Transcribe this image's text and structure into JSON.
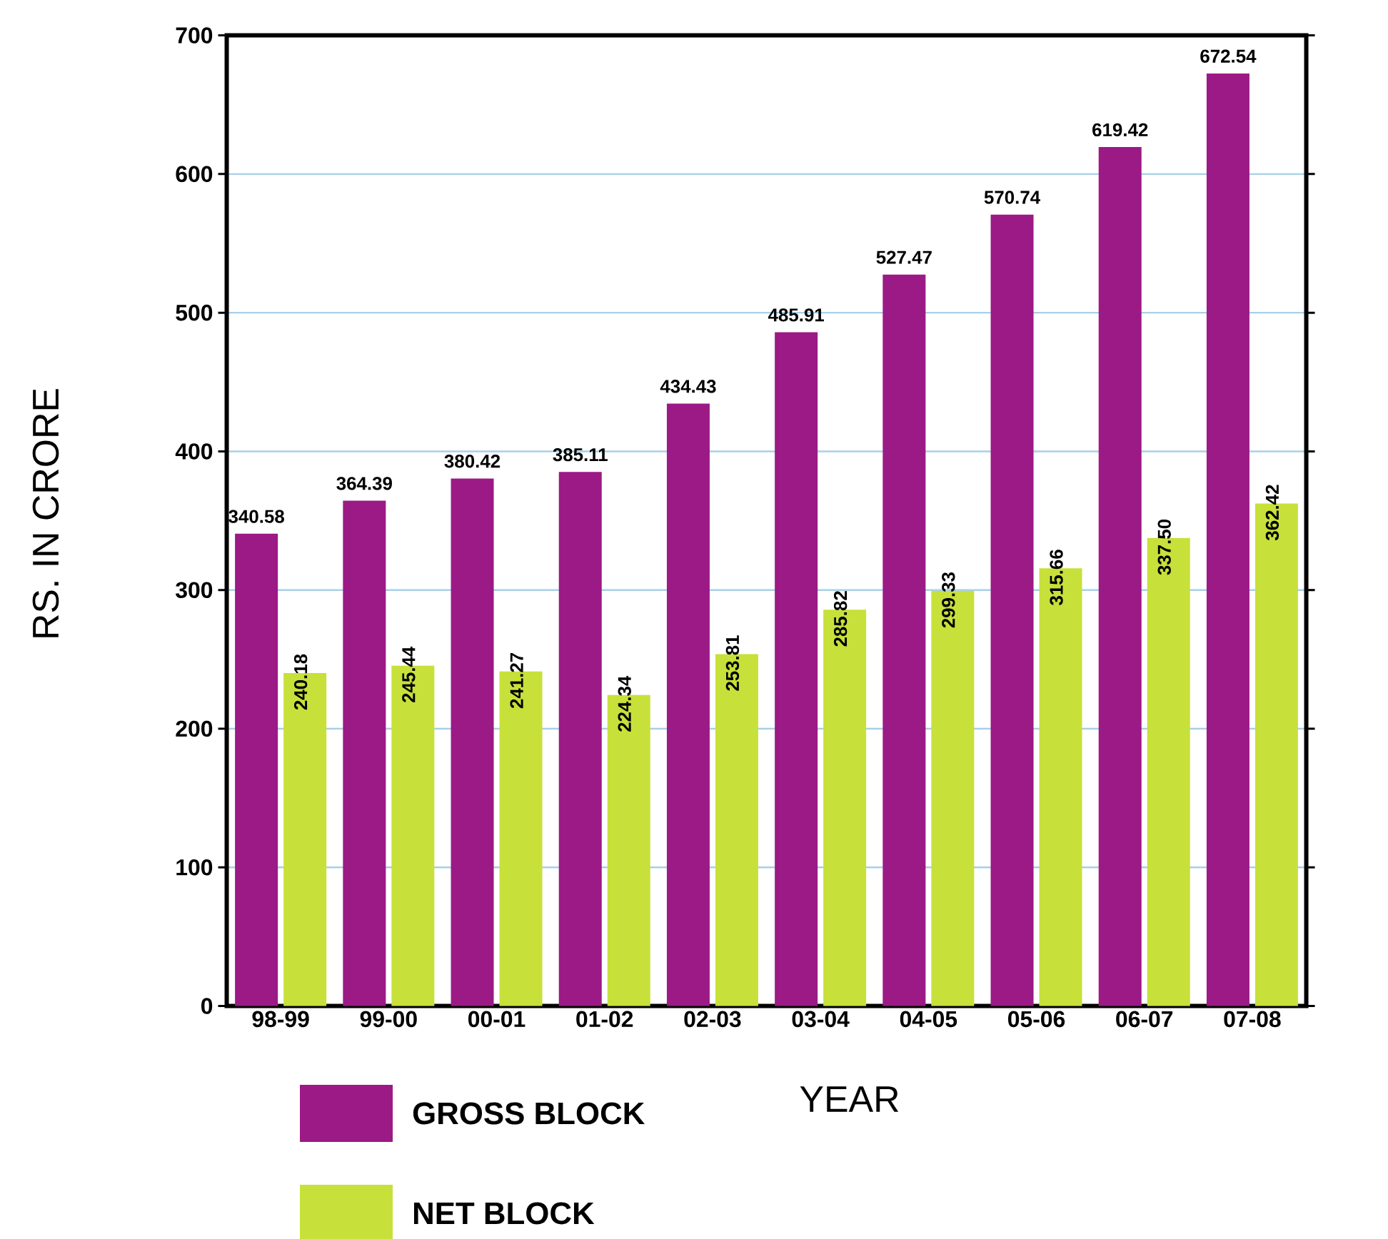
{
  "chart_data": {
    "type": "bar",
    "xlabel": "YEAR",
    "ylabel": "RS. IN CRORE",
    "categories": [
      "98-99",
      "99-00",
      "00-01",
      "01-02",
      "02-03",
      "03-04",
      "04-05",
      "05-06",
      "06-07",
      "07-08"
    ],
    "series": [
      {
        "name": "GROSS BLOCK",
        "color": "#9b1a85",
        "values": [
          340.58,
          364.39,
          380.42,
          385.11,
          434.43,
          485.91,
          527.47,
          570.74,
          619.42,
          672.54
        ],
        "value_labels": [
          "340.58",
          "364.39",
          "380.42",
          "385.11",
          "434.43",
          "485.91",
          "527.47",
          "570.74",
          "619.42",
          "672.54"
        ]
      },
      {
        "name": "NET BLOCK",
        "color": "#c8e03a",
        "values": [
          240.18,
          245.44,
          241.27,
          224.34,
          253.81,
          285.82,
          299.33,
          315.66,
          337.5,
          362.42
        ],
        "value_labels": [
          "240.18",
          "245.44",
          "241.27",
          "224.34",
          "253.81",
          "285.82",
          "299.33",
          "315.66",
          "337.50",
          "362.42"
        ]
      }
    ],
    "ylim": [
      0,
      700
    ],
    "yticks": [
      0,
      100,
      200,
      300,
      400,
      500,
      600,
      700
    ],
    "grid": "y",
    "legend": "bottom left"
  }
}
